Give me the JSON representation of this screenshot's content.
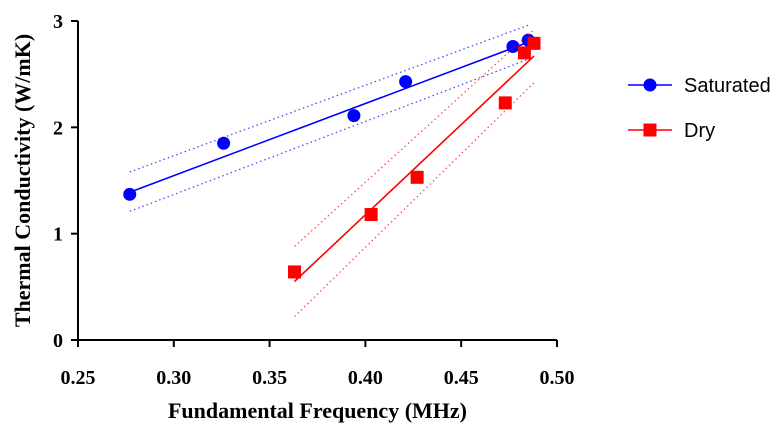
{
  "chart_data": {
    "type": "scatter",
    "xlabel": "Fundamental Frequency (MHz)",
    "ylabel": "Thermal Conductivity (W/mK)",
    "xlim": [
      0.25,
      0.5
    ],
    "ylim": [
      0,
      3
    ],
    "x_ticks": [
      0.25,
      0.3,
      0.35,
      0.4,
      0.45,
      0.5
    ],
    "x_tick_labels": [
      "0.25",
      "0.30",
      "0.35",
      "0.40",
      "0.45",
      "0.50"
    ],
    "y_ticks": [
      0,
      1,
      2,
      3
    ],
    "y_tick_labels": [
      "0",
      "1",
      "2",
      "3"
    ],
    "grid": false,
    "legend_position": "right",
    "series": [
      {
        "name": "Saturated",
        "color": "#0000ff",
        "marker": "circle",
        "points": [
          {
            "x": 0.277,
            "y": 1.37
          },
          {
            "x": 0.326,
            "y": 1.85
          },
          {
            "x": 0.394,
            "y": 2.11
          },
          {
            "x": 0.421,
            "y": 2.43
          },
          {
            "x": 0.477,
            "y": 2.76
          },
          {
            "x": 0.485,
            "y": 2.82
          }
        ],
        "fit_line": {
          "x": [
            0.277,
            0.485
          ],
          "y": [
            1.39,
            2.8
          ]
        },
        "ci_upper": {
          "x": [
            0.277,
            0.485
          ],
          "y": [
            1.58,
            2.96
          ]
        },
        "ci_lower": {
          "x": [
            0.277,
            0.485
          ],
          "y": [
            1.21,
            2.64
          ]
        }
      },
      {
        "name": "Dry",
        "color": "#ff0000",
        "marker": "square",
        "points": [
          {
            "x": 0.363,
            "y": 0.64
          },
          {
            "x": 0.403,
            "y": 1.18
          },
          {
            "x": 0.427,
            "y": 1.53
          },
          {
            "x": 0.473,
            "y": 2.23
          },
          {
            "x": 0.483,
            "y": 2.7
          },
          {
            "x": 0.488,
            "y": 2.79
          }
        ],
        "fit_line": {
          "x": [
            0.363,
            0.488
          ],
          "y": [
            0.55,
            2.67
          ]
        },
        "ci_upper": {
          "x": [
            0.363,
            0.488
          ],
          "y": [
            0.88,
            2.92
          ]
        },
        "ci_lower": {
          "x": [
            0.363,
            0.488
          ],
          "y": [
            0.22,
            2.42
          ]
        }
      }
    ]
  }
}
